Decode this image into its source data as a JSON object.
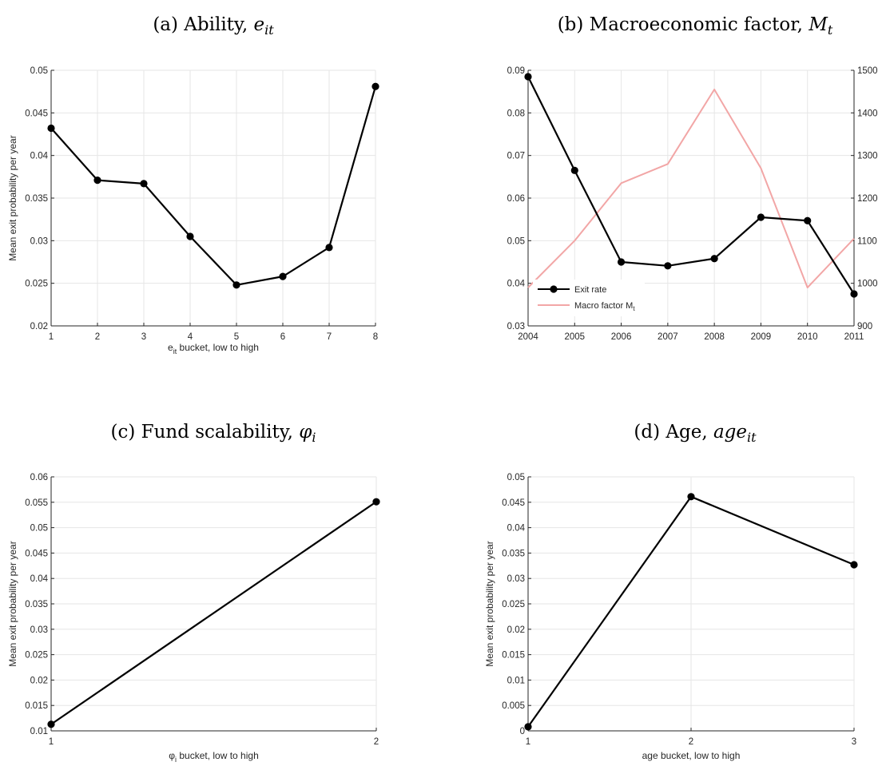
{
  "colors": {
    "series": "#000000",
    "macro": "#f2a6a6",
    "grid": "#e6e6e6",
    "axis": "#262626",
    "box": "#f0f0f0"
  },
  "chart_data": [
    {
      "id": "a",
      "type": "line",
      "title": {
        "prefix": "(a) Ability, ",
        "sym": "e",
        "sub": "it"
      },
      "x": [
        1,
        2,
        3,
        4,
        5,
        6,
        7,
        8
      ],
      "series": [
        {
          "values": [
            0.0432,
            0.0371,
            0.0367,
            0.0305,
            0.0248,
            0.0258,
            0.0292,
            0.0481
          ]
        }
      ],
      "xlim": [
        1,
        8
      ],
      "ylim": [
        0.02,
        0.05
      ],
      "xticks": [
        "1",
        "2",
        "3",
        "4",
        "5",
        "6",
        "7",
        "8"
      ],
      "yticks": [
        "0.02",
        "0.025",
        "0.03",
        "0.035",
        "0.04",
        "0.045",
        "0.05"
      ],
      "ylabel": "Mean exit probability per year",
      "xlabel": {
        "sym": "e",
        "sub": "it",
        "rest": " bucket, low to high"
      },
      "grid": true
    },
    {
      "id": "b",
      "type": "line",
      "title": {
        "prefix": "(b) Macroeconomic factor, ",
        "sym": "M",
        "sub": "t"
      },
      "x": [
        2004,
        2005,
        2006,
        2007,
        2008,
        2009,
        2010,
        2011
      ],
      "series": [
        {
          "name": "Exit rate",
          "axis": "left",
          "values": [
            0.0885,
            0.0665,
            0.045,
            0.0441,
            0.0458,
            0.0555,
            0.0547,
            0.0375
          ]
        },
        {
          "name": "Macro factor M",
          "name_sub": "t",
          "axis": "right",
          "values": [
            990,
            1100,
            1235,
            1280,
            1455,
            1270,
            990,
            1105
          ]
        }
      ],
      "xlim": [
        2004,
        2011
      ],
      "ylim": [
        0.03,
        0.09
      ],
      "y2lim": [
        900,
        1500
      ],
      "xticks": [
        "2004",
        "2005",
        "2006",
        "2007",
        "2008",
        "2009",
        "2010",
        "2011"
      ],
      "yticks": [
        "0.03",
        "0.04",
        "0.05",
        "0.06",
        "0.07",
        "0.08",
        "0.09"
      ],
      "y2ticks": [
        "900",
        "1000",
        "1100",
        "1200",
        "1300",
        "1400",
        "1500"
      ],
      "legend": "bottom-left",
      "grid": true
    },
    {
      "id": "c",
      "type": "line",
      "title": {
        "prefix": "(c) Fund scalability, ",
        "sym": "φ",
        "sub": "i"
      },
      "x": [
        1,
        2
      ],
      "series": [
        {
          "values": [
            0.0113,
            0.0551
          ]
        }
      ],
      "xlim": [
        1,
        2
      ],
      "ylim": [
        0.01,
        0.06
      ],
      "xticks": [
        "1",
        "2"
      ],
      "yticks": [
        "0.01",
        "0.015",
        "0.02",
        "0.025",
        "0.03",
        "0.035",
        "0.04",
        "0.045",
        "0.05",
        "0.055",
        "0.06"
      ],
      "ylabel": "Mean exit probability per year",
      "xlabel": {
        "sym": "φ",
        "sub": "i",
        "rest": " bucket, low to high"
      },
      "grid": true
    },
    {
      "id": "d",
      "type": "line",
      "title": {
        "prefix": "(d) Age, ",
        "sym": "age",
        "sub": "it"
      },
      "x": [
        1,
        2,
        3
      ],
      "series": [
        {
          "values": [
            0.0008,
            0.0461,
            0.0327
          ]
        }
      ],
      "xlim": [
        1,
        3
      ],
      "ylim": [
        0,
        0.05
      ],
      "xticks": [
        "1",
        "2",
        "3"
      ],
      "yticks": [
        "0",
        "0.005",
        "0.01",
        "0.015",
        "0.02",
        "0.025",
        "0.03",
        "0.035",
        "0.04",
        "0.045",
        "0.05"
      ],
      "ylabel": "Mean exit probability per year",
      "xlabel": {
        "sym": "",
        "sub": "",
        "rest": "age bucket, low to high"
      },
      "grid": true
    }
  ]
}
